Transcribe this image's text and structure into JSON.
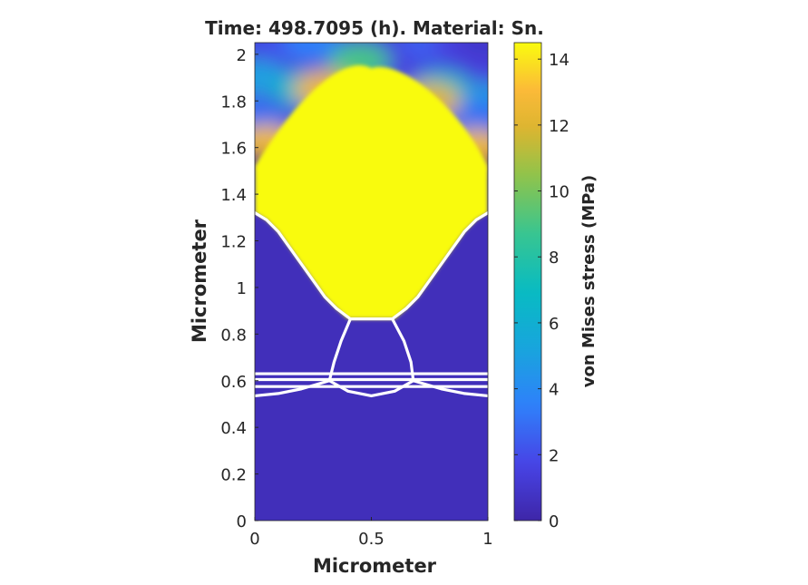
{
  "chart_data": {
    "type": "heatmap",
    "title": "Time: 498.7095 (h). Material: Sn.",
    "xlabel": "Micrometer",
    "ylabel": "Micrometer",
    "xlim": [
      0,
      1
    ],
    "ylim": [
      0,
      2.05
    ],
    "xticks": [
      0,
      0.5,
      1
    ],
    "xtick_labels": [
      "0",
      "0.5",
      "1"
    ],
    "yticks": [
      0,
      0.2,
      0.4,
      0.6,
      0.8,
      1.0,
      1.2,
      1.4,
      1.6,
      1.8,
      2.0
    ],
    "ytick_labels": [
      "0",
      "0.2",
      "0.4",
      "0.6",
      "0.8",
      "1",
      "1.2",
      "1.4",
      "1.6",
      "1.8",
      "2"
    ],
    "colorbar": {
      "label": "von Mises stress (MPa)",
      "range": [
        0,
        14.5
      ],
      "ticks": [
        0,
        2,
        4,
        6,
        8,
        10,
        12,
        14
      ],
      "tick_labels": [
        "0",
        "2",
        "4",
        "6",
        "8",
        "10",
        "12",
        "14"
      ],
      "colormap": "parula"
    },
    "field": {
      "low_region_value": 0.5,
      "high_region_value": 14.5,
      "top_edge_values_note_free": [
        [
          0.0,
          2.05,
          1.0
        ],
        [
          0.1,
          2.05,
          2.0
        ],
        [
          0.25,
          2.05,
          3.5
        ],
        [
          0.5,
          2.05,
          1.5
        ],
        [
          0.75,
          2.05,
          2.5
        ],
        [
          0.9,
          2.05,
          1.5
        ],
        [
          1.0,
          2.05,
          1.0
        ],
        [
          0.0,
          1.9,
          5.0
        ],
        [
          0.2,
          1.85,
          6.5
        ],
        [
          0.45,
          1.97,
          9.0
        ],
        [
          0.8,
          1.85,
          7.0
        ],
        [
          1.0,
          1.8,
          5.0
        ],
        [
          0.0,
          1.72,
          3.0
        ],
        [
          0.97,
          1.73,
          3.0
        ],
        [
          0.05,
          1.62,
          12.5
        ],
        [
          0.95,
          1.6,
          12.5
        ],
        [
          0.3,
          1.85,
          12.5
        ],
        [
          0.75,
          1.8,
          12.0
        ]
      ],
      "boundary_curve": [
        [
          0.0,
          1.32
        ],
        [
          0.05,
          1.29
        ],
        [
          0.1,
          1.24
        ],
        [
          0.15,
          1.17
        ],
        [
          0.2,
          1.1
        ],
        [
          0.25,
          1.03
        ],
        [
          0.3,
          0.96
        ],
        [
          0.35,
          0.91
        ],
        [
          0.4,
          0.865
        ],
        [
          0.5,
          0.865
        ],
        [
          0.6,
          0.865
        ],
        [
          0.65,
          0.91
        ],
        [
          0.7,
          0.96
        ],
        [
          0.75,
          1.03
        ],
        [
          0.8,
          1.1
        ],
        [
          0.85,
          1.17
        ],
        [
          0.9,
          1.24
        ],
        [
          0.95,
          1.29
        ],
        [
          1.0,
          1.32
        ]
      ]
    },
    "grain_boundaries": [
      [
        [
          0.0,
          1.32
        ],
        [
          0.05,
          1.29
        ],
        [
          0.1,
          1.24
        ],
        [
          0.15,
          1.17
        ],
        [
          0.2,
          1.1
        ],
        [
          0.25,
          1.03
        ],
        [
          0.3,
          0.96
        ],
        [
          0.35,
          0.91
        ],
        [
          0.41,
          0.865
        ]
      ],
      [
        [
          0.59,
          0.865
        ],
        [
          0.65,
          0.91
        ],
        [
          0.7,
          0.96
        ],
        [
          0.75,
          1.03
        ],
        [
          0.8,
          1.1
        ],
        [
          0.85,
          1.17
        ],
        [
          0.9,
          1.24
        ],
        [
          0.95,
          1.29
        ],
        [
          1.0,
          1.32
        ]
      ],
      [
        [
          0.41,
          0.865
        ],
        [
          0.59,
          0.865
        ]
      ],
      [
        [
          0.41,
          0.865
        ],
        [
          0.37,
          0.77
        ],
        [
          0.34,
          0.68
        ],
        [
          0.32,
          0.6
        ]
      ],
      [
        [
          0.59,
          0.865
        ],
        [
          0.64,
          0.77
        ],
        [
          0.67,
          0.68
        ],
        [
          0.68,
          0.6
        ]
      ],
      [
        [
          0.32,
          0.6
        ],
        [
          0.4,
          0.555
        ],
        [
          0.5,
          0.535
        ],
        [
          0.6,
          0.555
        ],
        [
          0.68,
          0.6
        ]
      ],
      [
        [
          0.0,
          0.535
        ],
        [
          0.1,
          0.545
        ],
        [
          0.2,
          0.565
        ],
        [
          0.32,
          0.6
        ]
      ],
      [
        [
          0.68,
          0.6
        ],
        [
          0.8,
          0.565
        ],
        [
          0.9,
          0.545
        ],
        [
          1.0,
          0.535
        ]
      ],
      [
        [
          0.0,
          0.63
        ],
        [
          1.0,
          0.63
        ]
      ],
      [
        [
          0.0,
          0.605
        ],
        [
          1.0,
          0.605
        ]
      ],
      [
        [
          0.0,
          0.575
        ],
        [
          1.0,
          0.575
        ]
      ]
    ]
  }
}
